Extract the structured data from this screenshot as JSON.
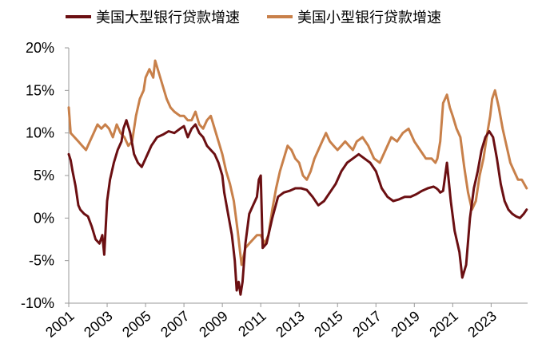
{
  "chart_data": {
    "type": "line",
    "title": "",
    "xlabel": "",
    "ylabel": "",
    "ylim": [
      -10,
      20
    ],
    "xlim": [
      2001.0,
      2024.9
    ],
    "y_ticks": [
      "20%",
      "15%",
      "10%",
      "5%",
      "0%",
      "-5%",
      "-10%"
    ],
    "y_tick_values": [
      20,
      15,
      10,
      5,
      0,
      -5,
      -10
    ],
    "x_ticks": [
      "2001",
      "2003",
      "2005",
      "2007",
      "2009",
      "2011",
      "2013",
      "2015",
      "2017",
      "2019",
      "2021",
      "2023"
    ],
    "x_tick_values": [
      2001,
      2003,
      2005,
      2007,
      2009,
      2011,
      2013,
      2015,
      2017,
      2019,
      2021,
      2023
    ],
    "grid": false,
    "legend_position": "top",
    "series": [
      {
        "name": "美国大型银行贷款增速",
        "color": "#6b0f12",
        "x": [
          2001.0,
          2001.1,
          2001.2,
          2001.35,
          2001.5,
          2001.6,
          2001.8,
          2002.0,
          2002.2,
          2002.4,
          2002.6,
          2002.75,
          2002.85,
          2003.0,
          2003.15,
          2003.35,
          2003.55,
          2003.75,
          2003.85,
          2004.0,
          2004.2,
          2004.4,
          2004.6,
          2004.8,
          2005.0,
          2005.3,
          2005.6,
          2005.9,
          2006.2,
          2006.5,
          2006.8,
          2007.0,
          2007.2,
          2007.4,
          2007.6,
          2007.8,
          2008.0,
          2008.2,
          2008.4,
          2008.6,
          2008.8,
          2009.0,
          2009.1,
          2009.3,
          2009.5,
          2009.65,
          2009.75,
          2009.85,
          2009.95,
          2010.05,
          2010.2,
          2010.4,
          2010.6,
          2010.8,
          2010.9,
          2011.0,
          2011.1,
          2011.3,
          2011.6,
          2011.9,
          2012.2,
          2012.5,
          2012.8,
          2013.1,
          2013.4,
          2013.7,
          2014.0,
          2014.3,
          2014.6,
          2014.9,
          2015.2,
          2015.5,
          2015.8,
          2016.1,
          2016.4,
          2016.7,
          2017.0,
          2017.3,
          2017.6,
          2017.9,
          2018.2,
          2018.5,
          2018.8,
          2019.1,
          2019.4,
          2019.7,
          2020.0,
          2020.15,
          2020.25,
          2020.35,
          2020.5,
          2020.7,
          2020.9,
          2021.1,
          2021.25,
          2021.35,
          2021.5,
          2021.7,
          2021.9,
          2022.1,
          2022.3,
          2022.5,
          2022.7,
          2022.9,
          2023.1,
          2023.3,
          2023.5,
          2023.7,
          2023.9,
          2024.1,
          2024.3,
          2024.5,
          2024.7,
          2024.85
        ],
        "y": [
          7.5,
          6.8,
          5.5,
          3.8,
          1.5,
          1.0,
          0.5,
          0.2,
          -1.0,
          -2.5,
          -3.0,
          -2.0,
          -4.3,
          2.0,
          4.5,
          6.5,
          8.0,
          9.0,
          10.5,
          11.5,
          10.0,
          7.5,
          6.5,
          6.0,
          7.0,
          8.5,
          9.5,
          9.8,
          10.2,
          10.0,
          10.5,
          10.8,
          9.5,
          10.5,
          11.0,
          10.0,
          9.5,
          8.5,
          8.0,
          7.5,
          6.5,
          5.0,
          3.0,
          0.5,
          -2.0,
          -5.0,
          -8.5,
          -7.5,
          -9.0,
          -7.5,
          -3.0,
          0.5,
          1.5,
          2.5,
          4.5,
          5.0,
          -3.5,
          -3.0,
          0.0,
          2.5,
          3.0,
          3.2,
          3.5,
          3.5,
          3.3,
          2.5,
          1.5,
          2.0,
          3.0,
          4.0,
          5.5,
          6.5,
          7.0,
          7.5,
          7.0,
          6.5,
          5.5,
          3.5,
          2.5,
          2.0,
          2.2,
          2.5,
          2.5,
          2.8,
          3.2,
          3.5,
          3.7,
          3.5,
          3.3,
          3.0,
          3.2,
          6.5,
          2.0,
          -1.5,
          -3.0,
          -4.0,
          -7.0,
          -5.5,
          0.0,
          3.5,
          5.5,
          8.0,
          9.5,
          10.2,
          9.5,
          7.0,
          4.0,
          2.0,
          1.0,
          0.5,
          0.2,
          0.0,
          0.5,
          1.0
        ]
      },
      {
        "name": "美国小型银行贷款增速",
        "color": "#c8804a",
        "x": [
          2001.0,
          2001.1,
          2001.3,
          2001.5,
          2001.7,
          2001.9,
          2002.1,
          2002.3,
          2002.5,
          2002.7,
          2002.9,
          2003.1,
          2003.3,
          2003.5,
          2003.7,
          2003.9,
          2004.1,
          2004.3,
          2004.5,
          2004.7,
          2004.9,
          2005.0,
          2005.2,
          2005.4,
          2005.5,
          2005.7,
          2005.9,
          2006.1,
          2006.3,
          2006.5,
          2006.8,
          2007.0,
          2007.2,
          2007.4,
          2007.6,
          2007.8,
          2008.0,
          2008.2,
          2008.4,
          2008.6,
          2008.8,
          2009.0,
          2009.2,
          2009.4,
          2009.6,
          2009.8,
          2010.0,
          2010.2,
          2010.4,
          2010.6,
          2010.8,
          2011.0,
          2011.2,
          2011.4,
          2011.6,
          2011.8,
          2012.0,
          2012.2,
          2012.4,
          2012.6,
          2012.8,
          2013.0,
          2013.2,
          2013.4,
          2013.6,
          2013.8,
          2014.0,
          2014.2,
          2014.4,
          2014.6,
          2014.8,
          2015.0,
          2015.2,
          2015.4,
          2015.6,
          2015.8,
          2016.0,
          2016.3,
          2016.6,
          2016.9,
          2017.2,
          2017.5,
          2017.8,
          2018.1,
          2018.4,
          2018.7,
          2019.0,
          2019.3,
          2019.6,
          2019.9,
          2020.1,
          2020.2,
          2020.35,
          2020.5,
          2020.7,
          2020.85,
          2021.0,
          2021.2,
          2021.4,
          2021.6,
          2021.8,
          2022.0,
          2022.2,
          2022.4,
          2022.6,
          2022.8,
          2022.95,
          2023.05,
          2023.2,
          2023.4,
          2023.6,
          2023.8,
          2024.0,
          2024.2,
          2024.4,
          2024.6,
          2024.85
        ],
        "y": [
          13.0,
          10.0,
          9.5,
          9.0,
          8.5,
          8.0,
          9.0,
          10.0,
          11.0,
          10.5,
          11.0,
          10.5,
          9.5,
          11.0,
          10.0,
          9.5,
          8.5,
          9.0,
          12.0,
          14.0,
          15.0,
          16.5,
          17.5,
          16.5,
          18.5,
          17.0,
          15.5,
          14.0,
          13.0,
          12.5,
          12.0,
          12.0,
          11.5,
          11.5,
          12.5,
          11.0,
          10.5,
          11.5,
          12.0,
          10.5,
          9.0,
          7.5,
          5.5,
          4.0,
          2.0,
          -1.5,
          -5.5,
          -3.5,
          -3.0,
          -2.5,
          -2.0,
          -2.0,
          -3.0,
          -2.0,
          1.0,
          3.5,
          5.5,
          7.0,
          8.5,
          8.0,
          7.0,
          6.5,
          5.0,
          4.5,
          5.5,
          7.0,
          8.0,
          9.0,
          10.0,
          9.0,
          8.5,
          8.0,
          8.5,
          9.0,
          8.5,
          8.0,
          9.0,
          9.5,
          8.5,
          7.0,
          6.5,
          8.0,
          9.5,
          9.0,
          10.0,
          10.5,
          9.0,
          8.0,
          7.0,
          7.0,
          6.5,
          7.0,
          9.0,
          13.5,
          14.5,
          13.0,
          12.0,
          10.5,
          9.5,
          6.0,
          3.0,
          1.0,
          2.0,
          5.0,
          7.0,
          10.0,
          12.0,
          14.0,
          15.0,
          13.0,
          10.5,
          8.5,
          6.5,
          5.5,
          4.5,
          4.5,
          3.5
        ]
      }
    ]
  }
}
